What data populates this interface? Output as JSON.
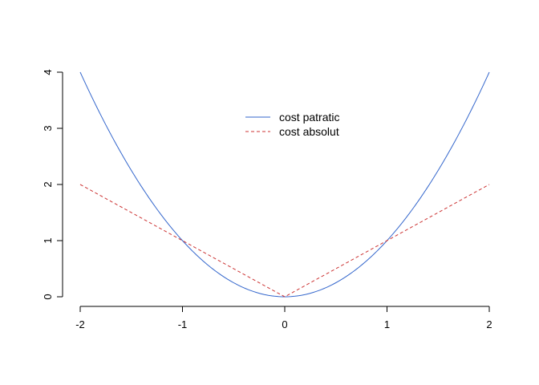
{
  "chart_data": {
    "type": "line",
    "title": "",
    "xlabel": "",
    "ylabel": "",
    "xlim": [
      -2,
      2
    ],
    "ylim": [
      0,
      4
    ],
    "x_ticks": [
      "-2",
      "-1",
      "0",
      "1",
      "2"
    ],
    "y_ticks": [
      "0",
      "1",
      "2",
      "3",
      "4"
    ],
    "grid": false,
    "legend_position": "top-center",
    "series": [
      {
        "name": "cost patratic",
        "color": "#3366cc",
        "line_style": "solid",
        "x": [
          -2.0,
          -1.75,
          -1.5,
          -1.25,
          -1.0,
          -0.75,
          -0.5,
          -0.25,
          0.0,
          0.25,
          0.5,
          0.75,
          1.0,
          1.25,
          1.5,
          1.75,
          2.0
        ],
        "y": [
          4.0,
          3.0625,
          2.25,
          1.5625,
          1.0,
          0.5625,
          0.25,
          0.0625,
          0.0,
          0.0625,
          0.25,
          0.5625,
          1.0,
          1.5625,
          2.25,
          3.0625,
          4.0
        ]
      },
      {
        "name": "cost absolut",
        "color": "#cc3333",
        "line_style": "dashed",
        "x": [
          -2.0,
          -1.0,
          0.0,
          1.0,
          2.0
        ],
        "y": [
          2.0,
          1.0,
          0.0,
          1.0,
          2.0
        ]
      }
    ]
  }
}
